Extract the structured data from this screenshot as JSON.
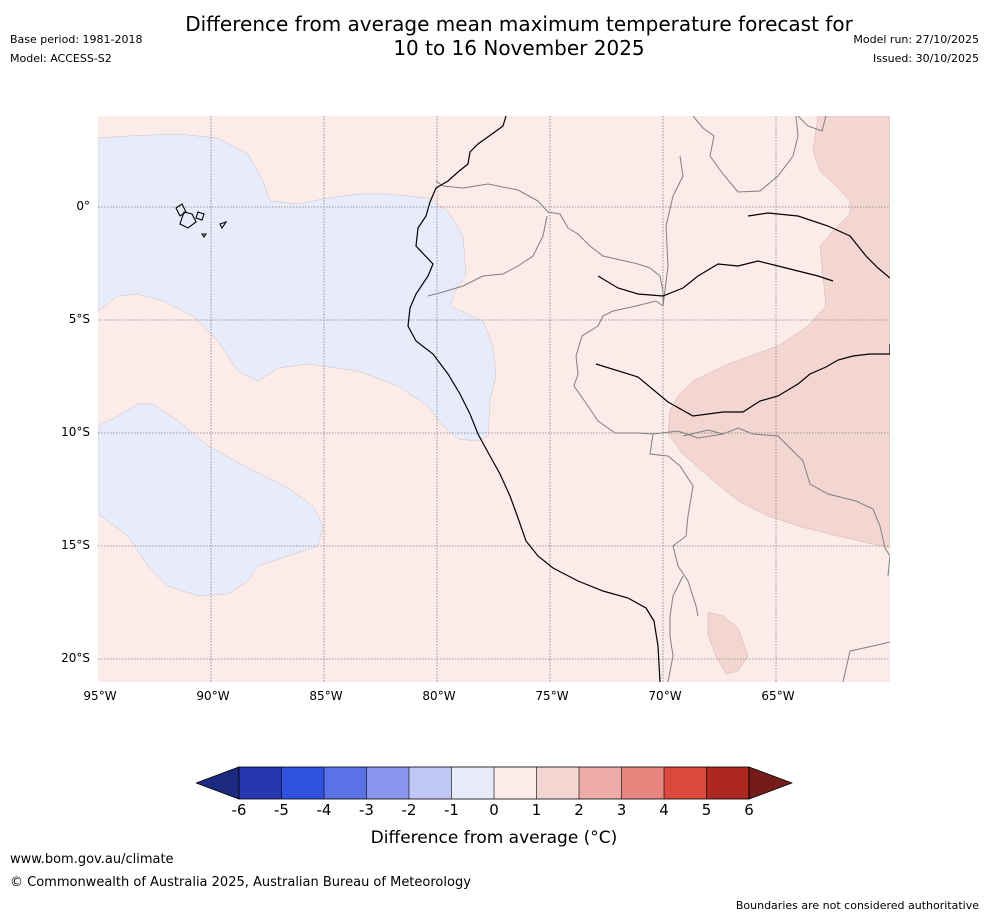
{
  "header": {
    "title": "Difference from average mean maximum temperature forecast for\n10 to 16 November 2025",
    "base_period": "Base period: 1981-2018",
    "model": "Model: ACCESS-S2",
    "model_run": "Model run: 27/10/2025",
    "issued": "Issued: 30/10/2025"
  },
  "map": {
    "lat_labels": [
      "0°",
      "5°S",
      "10°S",
      "15°S",
      "20°S"
    ],
    "lon_labels": [
      "95°W",
      "90°W",
      "85°W",
      "80°W",
      "75°W",
      "70°W",
      "65°W"
    ],
    "colors": {
      "anomaly_-1_0": "#e8ebfa",
      "anomaly_0_1": "#fbebe9",
      "anomaly_1_2": "#f3d5d1",
      "coastline": "#000000",
      "border": "#808080",
      "graticule": "#808080"
    }
  },
  "legend": {
    "label": "Difference from average (°C)",
    "ticks": [
      "-6",
      "-5",
      "-4",
      "-3",
      "-2",
      "-1",
      "0",
      "1",
      "2",
      "3",
      "4",
      "5",
      "6"
    ],
    "colors": [
      "#1c2a80",
      "#2638b0",
      "#3050e0",
      "#5b72e6",
      "#8796ec",
      "#c1c8f5",
      "#e8ebfa",
      "#fbebe9",
      "#f3d5d1",
      "#eeaca8",
      "#e6857d",
      "#db4a3d",
      "#ac2820",
      "#741c17"
    ]
  },
  "footer": {
    "url": "www.bom.gov.au/climate",
    "copyright": "© Commonwealth of Australia 2025, Australian Bureau of Meteorology",
    "disclaimer": "Boundaries are not considered authoritative"
  }
}
